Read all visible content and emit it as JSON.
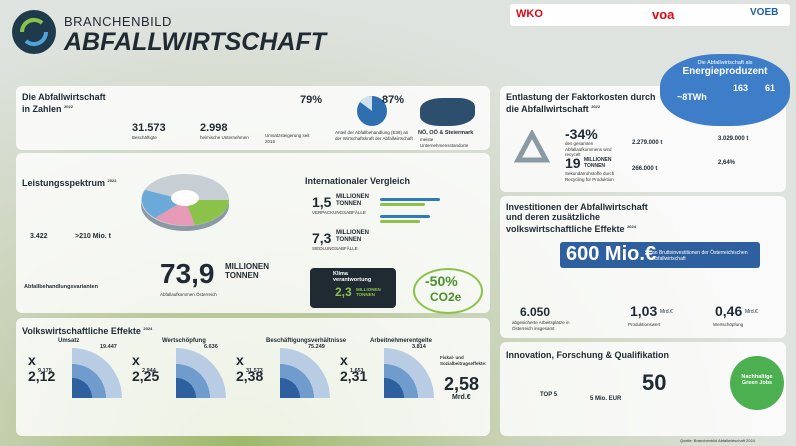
{
  "header": {
    "title_small": "BRANCHENBILD",
    "title": "ABFALLWIRTSCHAFT",
    "logos": [
      "WKO",
      "voa",
      "VOEB"
    ]
  },
  "zahlen": {
    "title": "Die Abfallwirtschaft in Zahlen",
    "year": "2022",
    "stats": [
      {
        "value": "31.573",
        "label": "Beschäftigte"
      },
      {
        "value": "2.998",
        "label": "heimische Unternehmen"
      },
      {
        "value": "79%",
        "label": "Umsatzsteigerung seit 2015"
      },
      {
        "value": "87%",
        "label": "Anteil der Abfallbehandlung (E38) an der Wirtschaftskraft der Abfallwirtschaft"
      },
      {
        "value": "NÖ, OÖ & Steiermark",
        "label": "meiste Unternehmensstandorte"
      }
    ]
  },
  "leistung": {
    "title": "Leistungsspektrum",
    "year": "2022",
    "anlagen": "3.422",
    "tonnen": ">210 Mio. t",
    "varianten": "Abfallbehandlungsvarianten",
    "total": "73,9",
    "unit": "MILLIONEN TONNEN",
    "total_label": "Abfallaufkommen Österreich"
  },
  "international": {
    "title": "Internationaler Vergleich",
    "items": [
      {
        "value": "1,5",
        "unit": "MILLIONEN TONNEN",
        "label": "VERPACKUNGSABFÄLLE"
      },
      {
        "value": "7,3",
        "unit": "MILLIONEN TONNEN",
        "label": "SIEDLUNGSABFÄLLE"
      }
    ],
    "klima": {
      "title": "Klima verantwortung",
      "value": "2,3",
      "unit": "MILLIONEN TONNEN",
      "reduction": "-50%",
      "co2": "CO2e"
    }
  },
  "volkswirtschaft": {
    "title": "Volkswirtschaftliche Effekte",
    "year": "2024",
    "items": [
      {
        "name": "Umsatz",
        "factor": "x 2,12",
        "total": "19.447",
        "direct": "9.175"
      },
      {
        "name": "Wertschöpfung",
        "factor": "x 2,25",
        "total": "6.636",
        "direct": "2.944"
      },
      {
        "name": "Beschäftigungsverhältnisse",
        "factor": "x 2,38",
        "total": "75.249",
        "direct": "31.573"
      },
      {
        "name": "Arbeitnehmerentgelte",
        "factor": "x 2,31",
        "total": "3.814",
        "direct": "1.651"
      }
    ],
    "fiskal_label": "Fiskal- und Sozialbeitragseffekte:",
    "fiskal_value": "2,58",
    "fiskal_unit": "Mrd.€"
  },
  "entlastung": {
    "title": "Entlastung der Faktorkosten durch die Abfallwirtschaft",
    "year": "2022",
    "pct": "-34%",
    "pct_label": "des gesamten Abfallaufkommens wird recycelt",
    "mt": "19",
    "mt_unit": "MILLIONEN TONNEN",
    "mt_label": "Sekundärrohstoffe durch Recycling für Produktion",
    "facts": [
      "2.279.000 t",
      "3.029.000 t",
      "266.000 t",
      "2,64%"
    ]
  },
  "energie": {
    "title": "Die Abfallwirtschaft als",
    "title2": "Energieproduzent",
    "values": [
      "~8TWh",
      "163",
      "61"
    ]
  },
  "investitionen": {
    "title": "Investitionen der Abfallwirtschaft und deren zusätzliche volkswirtschaftliche Effekte",
    "year": "2024",
    "amount": "600 Mio.€",
    "amount_label": "an Bruttoinvestitionen der Österreichischen Abfallwirtschaft",
    "effects": [
      {
        "value": "6.050",
        "label": "abgesicherte Arbeitsplätze in Österreich insgesamt"
      },
      {
        "value": "1,03",
        "unit": "Mrd.€",
        "label": "Produktionswert"
      },
      {
        "value": "0,46",
        "unit": "Mrd.€",
        "label": "Wertschöpfung"
      }
    ]
  },
  "innovation": {
    "title": "Innovation, Forschung & Qualifikation",
    "items": [
      "TOP 5",
      "5 Mio. EUR",
      "50"
    ],
    "green": "Nachhaltige Green Jobs"
  },
  "footer": "Quelle: Branchenbild Abfallwirtschaft 2024"
}
